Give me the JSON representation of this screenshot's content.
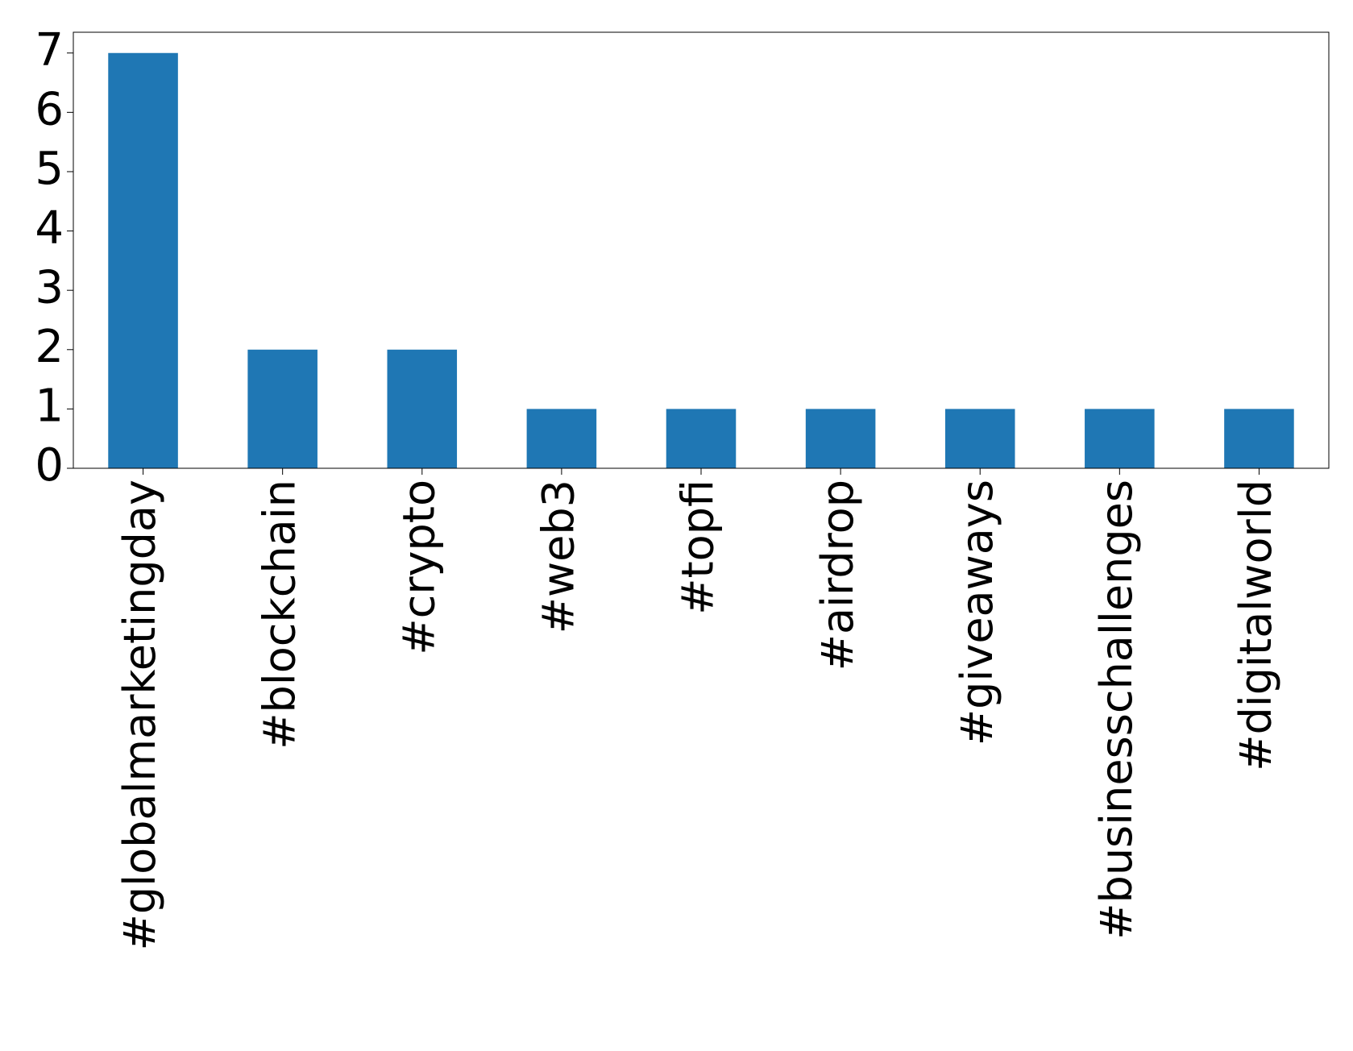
{
  "chart_data": {
    "type": "bar",
    "categories": [
      "#globalmarketingday",
      "#blockchain",
      "#crypto",
      "#web3",
      "#topfi",
      "#airdrop",
      "#giveaways",
      "#businesschallenges",
      "#digitalworld"
    ],
    "values": [
      7,
      2,
      2,
      1,
      1,
      1,
      1,
      1,
      1
    ],
    "color": "#1f77b4",
    "ylim": [
      0,
      7.35
    ],
    "yticks": [
      0,
      1,
      2,
      3,
      4,
      5,
      6,
      7
    ],
    "grid": false
  }
}
